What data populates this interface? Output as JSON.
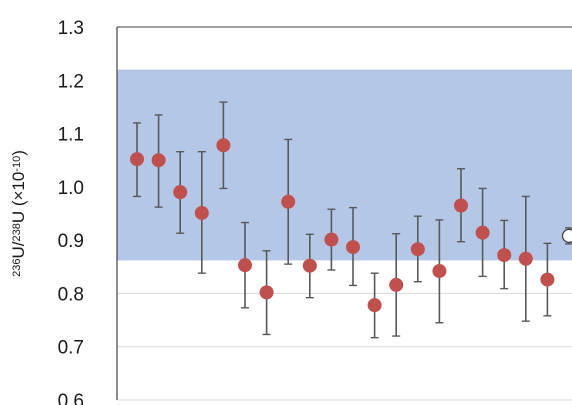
{
  "chart_data": {
    "type": "scatter",
    "ylabel": {
      "parts": [
        {
          "text": "236",
          "sup": true
        },
        {
          "text": "U/",
          "sup": false
        },
        {
          "text": "238",
          "sup": true
        },
        {
          "text": "U (×10",
          "sup": false
        },
        {
          "text": "-10",
          "sup": true
        },
        {
          "text": ")",
          "sup": false
        }
      ]
    },
    "ylim": [
      0.6,
      1.3
    ],
    "yticks": [
      "0.6",
      "0.7",
      "0.8",
      "0.9",
      "1.0",
      "1.1",
      "1.2",
      "1.3"
    ],
    "grid": true,
    "band": {
      "ymin": 0.862,
      "ymax": 1.22,
      "color": "#b4c7e7"
    },
    "colors": {
      "point": "#c0504d",
      "error_bar": "#595959",
      "open_point": "#ffffff",
      "open_edge": "#404040"
    },
    "series": [
      {
        "marker": "filled",
        "points": [
          {
            "y": 1.052,
            "lo": 0.982,
            "hi": 1.12
          },
          {
            "y": 1.05,
            "lo": 0.962,
            "hi": 1.135
          },
          {
            "y": 0.99,
            "lo": 0.913,
            "hi": 1.066
          },
          {
            "y": 0.951,
            "lo": 0.838,
            "hi": 1.066
          },
          {
            "y": 1.078,
            "lo": 0.997,
            "hi": 1.159
          },
          {
            "y": 0.853,
            "lo": 0.773,
            "hi": 0.933
          },
          {
            "y": 0.802,
            "lo": 0.723,
            "hi": 0.88
          },
          {
            "y": 0.972,
            "lo": 0.855,
            "hi": 1.089
          },
          {
            "y": 0.852,
            "lo": 0.792,
            "hi": 0.911
          },
          {
            "y": 0.901,
            "lo": 0.844,
            "hi": 0.958
          },
          {
            "y": 0.887,
            "lo": 0.815,
            "hi": 0.961
          },
          {
            "y": 0.778,
            "lo": 0.717,
            "hi": 0.838
          },
          {
            "y": 0.816,
            "lo": 0.72,
            "hi": 0.912
          },
          {
            "y": 0.883,
            "lo": 0.822,
            "hi": 0.945
          },
          {
            "y": 0.842,
            "lo": 0.745,
            "hi": 0.938
          },
          {
            "y": 0.965,
            "lo": 0.897,
            "hi": 1.034
          },
          {
            "y": 0.914,
            "lo": 0.832,
            "hi": 0.997
          },
          {
            "y": 0.872,
            "lo": 0.809,
            "hi": 0.937
          },
          {
            "y": 0.865,
            "lo": 0.748,
            "hi": 0.982
          },
          {
            "y": 0.826,
            "lo": 0.758,
            "hi": 0.894
          }
        ]
      },
      {
        "marker": "open",
        "points": [
          {
            "y": 0.908,
            "lo": 0.893,
            "hi": 0.923
          }
        ]
      }
    ]
  }
}
